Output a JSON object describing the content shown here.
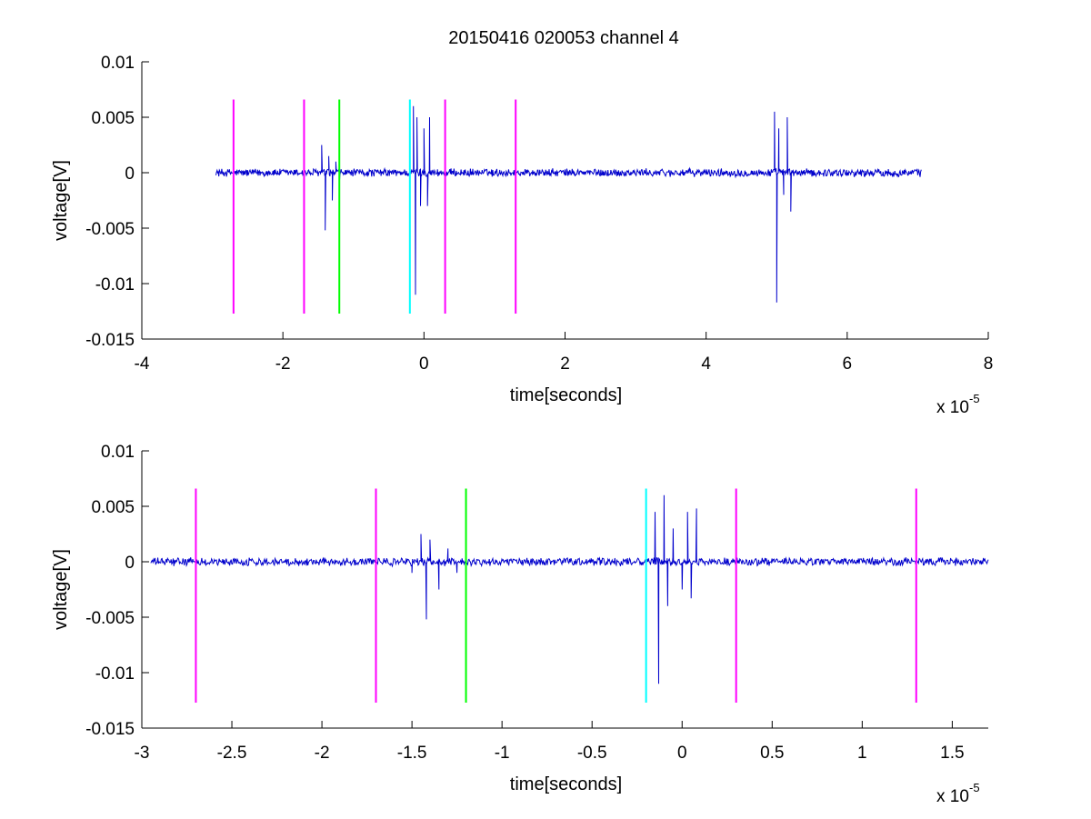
{
  "title": "20150416 020053 channel 4",
  "chart_data": [
    {
      "type": "line",
      "title": "20150416 020053 channel 4",
      "xlabel": "time[seconds]",
      "ylabel": "voltage[V]",
      "x_exponent_label": "x 10",
      "x_exponent": "-5",
      "xlim": [
        -4,
        8
      ],
      "ylim": [
        -0.015,
        0.01
      ],
      "x_ticks": [
        -4,
        -2,
        0,
        2,
        4,
        6,
        8
      ],
      "x_tick_labels": [
        "-4",
        "-2",
        "0",
        "2",
        "4",
        "6",
        "8"
      ],
      "y_ticks": [
        -0.015,
        -0.01,
        -0.005,
        0,
        0.005,
        0.01
      ],
      "y_tick_labels": [
        "-0.015",
        "-0.01",
        "-0.005",
        "0",
        "0.005",
        "0.01"
      ],
      "grid": false,
      "signal": {
        "color": "#0000cc",
        "x_range": [
          -2.95,
          7.05
        ],
        "noise_amplitude": 0.0004,
        "bursts": [
          {
            "x": [
              -1.45,
              -1.4,
              -1.35,
              -1.3,
              -1.25,
              -1.2
            ],
            "y": [
              0.0025,
              -0.0052,
              0.0015,
              -0.0025,
              0.001,
              -0.001
            ]
          },
          {
            "x": [
              -0.15,
              -0.12,
              -0.1,
              -0.05,
              0.0,
              0.05,
              0.08
            ],
            "y": [
              0.006,
              -0.011,
              0.005,
              -0.003,
              0.004,
              -0.003,
              0.005
            ]
          },
          {
            "x": [
              4.97,
              5.0,
              5.03,
              5.1,
              5.15,
              5.2
            ],
            "y": [
              0.0055,
              -0.0117,
              0.004,
              -0.002,
              0.005,
              -0.0035
            ]
          }
        ]
      },
      "markers": [
        {
          "x": -2.7,
          "color": "#ff00ff"
        },
        {
          "x": -1.7,
          "color": "#ff00ff"
        },
        {
          "x": -1.2,
          "color": "#00ff00"
        },
        {
          "x": -0.2,
          "color": "#00ffff"
        },
        {
          "x": 0.3,
          "color": "#ff00ff"
        },
        {
          "x": 1.3,
          "color": "#ff00ff"
        }
      ],
      "marker_y_range": [
        -0.0127,
        0.0066
      ]
    },
    {
      "type": "line",
      "title": "",
      "xlabel": "time[seconds]",
      "ylabel": "voltage[V]",
      "x_exponent_label": "x 10",
      "x_exponent": "-5",
      "xlim": [
        -3.0,
        1.7
      ],
      "ylim": [
        -0.015,
        0.01
      ],
      "x_ticks": [
        -3,
        -2.5,
        -2,
        -1.5,
        -1,
        -0.5,
        0,
        0.5,
        1,
        1.5
      ],
      "x_tick_labels": [
        "-3",
        "-2.5",
        "-2",
        "-1.5",
        "-1",
        "-0.5",
        "0",
        "0.5",
        "1",
        "1.5"
      ],
      "y_ticks": [
        -0.015,
        -0.01,
        -0.005,
        0,
        0.005,
        0.01
      ],
      "y_tick_labels": [
        "-0.015",
        "-0.01",
        "-0.005",
        "0",
        "0.005",
        "0.01"
      ],
      "grid": false,
      "signal": {
        "color": "#0000cc",
        "x_range": [
          -2.95,
          1.7
        ],
        "noise_amplitude": 0.0004,
        "bursts": [
          {
            "x": [
              -1.5,
              -1.45,
              -1.42,
              -1.4,
              -1.35,
              -1.3,
              -1.25,
              -1.2
            ],
            "y": [
              -0.001,
              0.0025,
              -0.0052,
              0.002,
              -0.0025,
              0.0012,
              -0.001,
              0.0008
            ]
          },
          {
            "x": [
              -0.15,
              -0.13,
              -0.1,
              -0.08,
              -0.05,
              0.0,
              0.03,
              0.05,
              0.08
            ],
            "y": [
              0.0045,
              -0.011,
              0.006,
              -0.004,
              0.003,
              -0.0025,
              0.0045,
              -0.0033,
              0.0048
            ]
          }
        ]
      },
      "markers": [
        {
          "x": -2.7,
          "color": "#ff00ff"
        },
        {
          "x": -1.7,
          "color": "#ff00ff"
        },
        {
          "x": -1.2,
          "color": "#00ff00"
        },
        {
          "x": -0.2,
          "color": "#00ffff"
        },
        {
          "x": 0.3,
          "color": "#ff00ff"
        },
        {
          "x": 1.3,
          "color": "#ff00ff"
        }
      ],
      "marker_y_range": [
        -0.0127,
        0.0066
      ]
    }
  ]
}
